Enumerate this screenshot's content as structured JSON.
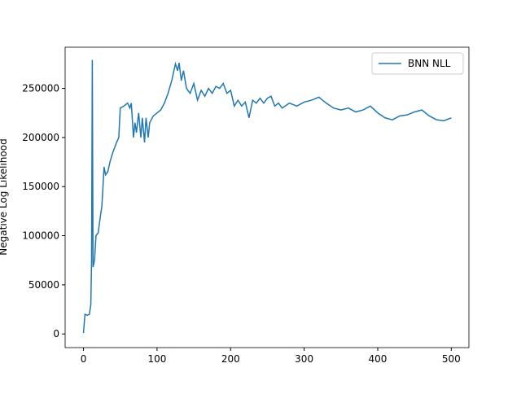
{
  "chart_data": {
    "type": "line",
    "y_label": "Negative Log Likelihood",
    "legend": "upper right",
    "x": [
      0,
      2,
      5,
      8,
      10,
      11,
      12,
      13,
      15,
      17,
      20,
      23,
      25,
      28,
      30,
      33,
      36,
      40,
      45,
      48,
      50,
      55,
      60,
      63,
      65,
      68,
      70,
      72,
      75,
      78,
      80,
      83,
      85,
      88,
      90,
      95,
      100,
      105,
      110,
      115,
      120,
      125,
      128,
      130,
      133,
      136,
      140,
      145,
      150,
      155,
      160,
      165,
      170,
      175,
      180,
      185,
      190,
      195,
      200,
      205,
      210,
      215,
      220,
      225,
      230,
      235,
      240,
      245,
      250,
      255,
      260,
      265,
      270,
      280,
      290,
      300,
      310,
      320,
      330,
      340,
      350,
      360,
      370,
      380,
      390,
      400,
      410,
      420,
      430,
      440,
      450,
      460,
      470,
      480,
      490,
      500
    ],
    "series": [
      {
        "name": "BNN NLL",
        "color": "#1f77b4",
        "values": [
          1000,
          20000,
          19000,
          20000,
          30000,
          75000,
          279000,
          68000,
          75000,
          100000,
          103000,
          120000,
          130000,
          170000,
          162000,
          165000,
          175000,
          185000,
          195000,
          200000,
          230000,
          232000,
          235000,
          230000,
          235000,
          200000,
          215000,
          205000,
          225000,
          200000,
          220000,
          195000,
          220000,
          200000,
          215000,
          222000,
          225000,
          228000,
          235000,
          245000,
          258000,
          275000,
          268000,
          276000,
          258000,
          268000,
          250000,
          245000,
          255000,
          238000,
          248000,
          242000,
          250000,
          245000,
          252000,
          250000,
          255000,
          245000,
          248000,
          232000,
          238000,
          232000,
          236000,
          220000,
          238000,
          235000,
          240000,
          235000,
          240000,
          242000,
          232000,
          235000,
          230000,
          235000,
          232000,
          236000,
          238000,
          241000,
          235000,
          230000,
          228000,
          230000,
          226000,
          228000,
          232000,
          225000,
          220000,
          218000,
          222000,
          223000,
          226000,
          228000,
          222000,
          218000,
          217000,
          220000
        ]
      }
    ],
    "xlim": [
      -24.95,
      523.95
    ],
    "xticks": [
      0,
      100,
      200,
      300,
      400,
      500
    ],
    "ylim": [
      -13900,
      291900
    ],
    "yticks": [
      0,
      50000,
      100000,
      150000,
      200000,
      250000
    ]
  }
}
